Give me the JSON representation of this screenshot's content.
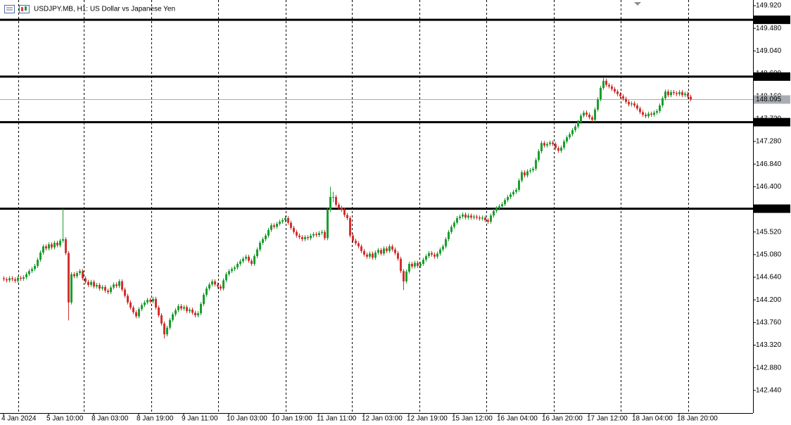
{
  "chart_data": {
    "type": "candlestick",
    "title": "USDJPY.MB, H1:  US Dollar vs Japanese Yen",
    "up_color": "#1a9e2e",
    "down_color": "#d32f2f",
    "level_color": "#000000",
    "current_color": "#a7adb2",
    "ylim": [
      142.0,
      150.03
    ],
    "yticks": [
      {
        "value": 149.92,
        "label": "149.920"
      },
      {
        "value": 149.48,
        "label": "149.480"
      },
      {
        "value": 149.04,
        "label": "149.040"
      },
      {
        "value": 148.6,
        "label": "148.600"
      },
      {
        "value": 148.16,
        "label": "148.160"
      },
      {
        "value": 147.72,
        "label": "147.720"
      },
      {
        "value": 147.28,
        "label": "147.280"
      },
      {
        "value": 146.84,
        "label": "146.840"
      },
      {
        "value": 146.4,
        "label": "146.400"
      },
      {
        "value": 145.96,
        "label": "145.960"
      },
      {
        "value": 145.52,
        "label": "145.520"
      },
      {
        "value": 145.08,
        "label": "145.080"
      },
      {
        "value": 144.64,
        "label": "144.640"
      },
      {
        "value": 144.2,
        "label": "144.200"
      },
      {
        "value": 143.76,
        "label": "143.760"
      },
      {
        "value": 143.32,
        "label": "143.320"
      },
      {
        "value": 142.88,
        "label": "142.880"
      },
      {
        "value": 142.44,
        "label": "142.440"
      }
    ],
    "levels": [
      149.645,
      148.541,
      147.655,
      145.973
    ],
    "current_price": 148.095,
    "categories": [
      "4 Jan 2024",
      null,
      null,
      null,
      null,
      null,
      null,
      null,
      null,
      null,
      null,
      null,
      null,
      null,
      null,
      null,
      "5 Jan 10:00",
      null,
      null,
      null,
      null,
      null,
      null,
      null,
      null,
      null,
      null,
      null,
      null,
      null,
      null,
      null,
      "8 Jan 03:00",
      null,
      null,
      null,
      null,
      null,
      null,
      null,
      null,
      null,
      null,
      null,
      null,
      null,
      null,
      null,
      "8 Jan 19:00",
      null,
      null,
      null,
      null,
      null,
      null,
      null,
      null,
      null,
      null,
      null,
      null,
      null,
      null,
      null,
      "9 Jan 11:00",
      null,
      null,
      null,
      null,
      null,
      null,
      null,
      null,
      null,
      null,
      null,
      null,
      null,
      null,
      null,
      "10 Jan 03:00",
      null,
      null,
      null,
      null,
      null,
      null,
      null,
      null,
      null,
      null,
      null,
      null,
      null,
      null,
      null,
      "10 Jan 19:00",
      null,
      null,
      null,
      null,
      null,
      null,
      null,
      null,
      null,
      null,
      null,
      null,
      null,
      null,
      null,
      "11 Jan 11:00",
      null,
      null,
      null,
      null,
      null,
      null,
      null,
      null,
      null,
      null,
      null,
      null,
      null,
      null,
      null,
      "12 Jan 03:00",
      null,
      null,
      null,
      null,
      null,
      null,
      null,
      null,
      null,
      null,
      null,
      null,
      null,
      null,
      null,
      "12 Jan 19:00",
      null,
      null,
      null,
      null,
      null,
      null,
      null,
      null,
      null,
      null,
      null,
      null,
      null,
      null,
      null,
      "15 Jan 12:00",
      null,
      null,
      null,
      null,
      null,
      null,
      null,
      null,
      null,
      null,
      null,
      null,
      null,
      null,
      null,
      "16 Jan 04:00",
      null,
      null,
      null,
      null,
      null,
      null,
      null,
      null,
      null,
      null,
      null,
      null,
      null,
      null,
      null,
      "16 Jan 20:00",
      null,
      null,
      null,
      null,
      null,
      null,
      null,
      null,
      null,
      null,
      null,
      null,
      null,
      null,
      null,
      "17 Jan 12:00",
      null,
      null,
      null,
      null,
      null,
      null,
      null,
      null,
      null,
      null,
      null,
      null,
      null,
      null,
      null,
      "18 Jan 04:00",
      null,
      null,
      null,
      null,
      null,
      null,
      null,
      null,
      null,
      null,
      null,
      null,
      null,
      null,
      null,
      "18 Jan 20:00",
      null,
      null,
      null,
      null
    ],
    "open": [
      144.62,
      144.6,
      144.58,
      144.62,
      144.6,
      144.57,
      144.63,
      144.61,
      144.64,
      144.7,
      144.76,
      144.8,
      144.86,
      144.98,
      145.12,
      145.24,
      145.2,
      145.28,
      145.22,
      145.31,
      145.26,
      145.35,
      145.38,
      145.11,
      144.15,
      144.7,
      144.66,
      144.72,
      144.76,
      144.62,
      144.55,
      144.49,
      144.55,
      144.46,
      144.49,
      144.42,
      144.45,
      144.38,
      144.35,
      144.44,
      144.5,
      144.47,
      144.56,
      144.4,
      144.28,
      144.15,
      144.05,
      143.96,
      143.88,
      144.02,
      144.1,
      144.15,
      144.2,
      144.17,
      144.22,
      144.05,
      143.9,
      143.74,
      143.53,
      143.66,
      143.81,
      143.92,
      144.0,
      144.08,
      144.03,
      144.06,
      143.98,
      144.01,
      143.95,
      143.9,
      143.94,
      144.12,
      144.3,
      144.42,
      144.5,
      144.56,
      144.5,
      144.46,
      144.42,
      144.58,
      144.7,
      144.76,
      144.8,
      144.83,
      144.9,
      144.95,
      145.0,
      145.04,
      144.96,
      144.9,
      145.05,
      145.18,
      145.31,
      145.38,
      145.45,
      145.56,
      145.65,
      145.62,
      145.68,
      145.72,
      145.75,
      145.79,
      145.7,
      145.6,
      145.52,
      145.45,
      145.42,
      145.38,
      145.42,
      145.4,
      145.45,
      145.48,
      145.46,
      145.5,
      145.52,
      145.4,
      145.95,
      146.2,
      146.2,
      146.05,
      145.99,
      145.95,
      145.85,
      145.79,
      145.45,
      145.35,
      145.3,
      145.24,
      145.15,
      145.08,
      145.04,
      145.1,
      145.02,
      145.12,
      145.17,
      145.1,
      145.2,
      145.15,
      145.24,
      145.18,
      145.11,
      145.0,
      144.76,
      144.56,
      144.75,
      144.9,
      144.85,
      144.92,
      144.86,
      144.9,
      144.98,
      145.05,
      145.11,
      145.08,
      145.04,
      145.1,
      145.18,
      145.24,
      145.38,
      145.52,
      145.62,
      145.7,
      145.79,
      145.82,
      145.86,
      145.8,
      145.84,
      145.8,
      145.82,
      145.8,
      145.78,
      145.8,
      145.75,
      145.72,
      145.84,
      145.93,
      145.98,
      146.02,
      146.06,
      146.14,
      146.2,
      146.25,
      146.3,
      146.34,
      146.52,
      146.68,
      146.62,
      146.7,
      146.72,
      146.75,
      146.92,
      147.09,
      147.25,
      147.2,
      147.23,
      147.26,
      147.23,
      147.15,
      147.1,
      147.16,
      147.28,
      147.36,
      147.42,
      147.5,
      147.57,
      147.66,
      147.78,
      147.84,
      147.8,
      147.75,
      147.7,
      147.9,
      148.1,
      148.32,
      148.46,
      148.38,
      148.35,
      148.3,
      148.25,
      148.2,
      148.16,
      148.11,
      148.05,
      148.0,
      148.02,
      147.98,
      147.92,
      147.85,
      147.8,
      147.77,
      147.82,
      147.8,
      147.84,
      147.87,
      147.98,
      148.12,
      148.25,
      148.18,
      148.24,
      148.22,
      148.2,
      148.24,
      148.18,
      148.21,
      148.15
    ],
    "high": [
      144.66,
      144.64,
      144.66,
      144.66,
      144.64,
      144.67,
      144.67,
      144.68,
      144.74,
      144.8,
      144.84,
      144.9,
      145.02,
      145.16,
      145.28,
      145.28,
      145.32,
      145.32,
      145.35,
      145.35,
      145.39,
      145.97,
      145.42,
      145.15,
      144.74,
      144.74,
      144.76,
      144.8,
      144.8,
      144.66,
      144.59,
      144.59,
      144.59,
      144.53,
      144.53,
      144.49,
      144.49,
      144.42,
      144.48,
      144.54,
      144.54,
      144.6,
      144.6,
      144.44,
      144.32,
      144.19,
      144.09,
      144.0,
      144.06,
      144.14,
      144.19,
      144.24,
      144.24,
      144.26,
      144.26,
      144.09,
      143.94,
      143.78,
      143.7,
      143.85,
      143.96,
      144.04,
      144.12,
      144.12,
      144.1,
      144.1,
      144.05,
      144.05,
      143.99,
      143.98,
      144.16,
      144.34,
      144.46,
      144.54,
      144.6,
      144.6,
      144.54,
      144.5,
      144.62,
      144.74,
      144.8,
      144.84,
      144.87,
      144.94,
      144.99,
      145.04,
      145.08,
      145.08,
      145.0,
      145.09,
      145.22,
      145.35,
      145.42,
      145.49,
      145.6,
      145.69,
      145.69,
      145.72,
      145.76,
      145.79,
      145.83,
      145.83,
      145.74,
      145.64,
      145.56,
      145.49,
      145.46,
      145.46,
      145.46,
      145.49,
      145.52,
      145.52,
      145.54,
      145.56,
      145.56,
      145.99,
      146.4,
      146.3,
      146.24,
      146.09,
      146.03,
      145.99,
      145.89,
      145.83,
      145.49,
      145.39,
      145.34,
      145.28,
      145.19,
      145.12,
      145.14,
      145.14,
      145.16,
      145.21,
      145.21,
      145.24,
      145.24,
      145.28,
      145.28,
      145.22,
      145.15,
      145.04,
      144.8,
      144.79,
      144.94,
      144.94,
      144.96,
      144.96,
      144.94,
      145.02,
      145.09,
      145.15,
      145.15,
      145.12,
      145.14,
      145.22,
      145.28,
      145.42,
      145.56,
      145.66,
      145.74,
      145.83,
      145.86,
      145.9,
      145.9,
      145.88,
      145.88,
      145.86,
      145.86,
      145.84,
      145.84,
      145.84,
      145.79,
      145.88,
      145.97,
      146.02,
      146.06,
      146.1,
      146.18,
      146.24,
      146.29,
      146.34,
      146.38,
      146.56,
      146.72,
      146.72,
      146.74,
      146.76,
      146.79,
      146.96,
      147.13,
      147.29,
      147.29,
      147.27,
      147.3,
      147.3,
      147.27,
      147.19,
      147.2,
      147.32,
      147.4,
      147.46,
      147.54,
      147.61,
      147.7,
      147.82,
      147.88,
      147.88,
      147.84,
      147.79,
      147.94,
      148.14,
      148.36,
      148.53,
      148.5,
      148.42,
      148.39,
      148.34,
      148.29,
      148.24,
      148.2,
      148.15,
      148.09,
      148.06,
      148.06,
      148.02,
      147.96,
      147.89,
      147.84,
      147.86,
      147.86,
      147.88,
      147.91,
      148.02,
      148.16,
      148.29,
      148.29,
      148.28,
      148.28,
      148.26,
      148.28,
      148.28,
      148.25,
      148.25,
      148.19
    ],
    "low": [
      144.56,
      144.54,
      144.54,
      144.56,
      144.53,
      144.53,
      144.57,
      144.57,
      144.6,
      144.66,
      144.72,
      144.76,
      144.82,
      144.94,
      145.08,
      145.16,
      145.16,
      145.18,
      145.18,
      145.22,
      145.22,
      145.31,
      145.07,
      143.8,
      144.11,
      144.62,
      144.62,
      144.68,
      144.58,
      144.51,
      144.45,
      144.45,
      144.42,
      144.42,
      144.38,
      144.38,
      144.34,
      144.31,
      144.31,
      144.4,
      144.43,
      144.43,
      144.36,
      144.24,
      144.11,
      144.01,
      143.92,
      143.84,
      143.84,
      143.98,
      144.06,
      144.11,
      144.13,
      144.13,
      144.01,
      143.86,
      143.7,
      143.45,
      143.49,
      143.62,
      143.77,
      143.88,
      143.96,
      143.99,
      143.99,
      143.94,
      143.94,
      143.91,
      143.86,
      143.86,
      143.9,
      144.08,
      144.26,
      144.38,
      144.46,
      144.46,
      144.42,
      144.38,
      144.38,
      144.54,
      144.66,
      144.72,
      144.76,
      144.79,
      144.86,
      144.91,
      144.96,
      144.92,
      144.86,
      144.86,
      145.01,
      145.14,
      145.27,
      145.34,
      145.41,
      145.52,
      145.58,
      145.58,
      145.64,
      145.68,
      145.71,
      145.66,
      145.56,
      145.48,
      145.41,
      145.38,
      145.34,
      145.34,
      145.36,
      145.36,
      145.41,
      145.42,
      145.42,
      145.46,
      145.36,
      145.36,
      145.91,
      146.1,
      146.01,
      145.95,
      145.91,
      145.81,
      145.75,
      145.41,
      145.31,
      145.26,
      145.2,
      145.11,
      145.04,
      145.0,
      145.0,
      144.98,
      144.98,
      145.08,
      145.06,
      145.06,
      145.11,
      145.11,
      145.14,
      145.07,
      144.96,
      144.72,
      144.39,
      144.52,
      144.71,
      144.81,
      144.81,
      144.82,
      144.82,
      144.86,
      144.94,
      145.01,
      145.04,
      145.0,
      145.0,
      145.06,
      145.14,
      145.2,
      145.34,
      145.48,
      145.58,
      145.66,
      145.75,
      145.78,
      145.76,
      145.76,
      145.76,
      145.76,
      145.76,
      145.74,
      145.74,
      145.71,
      145.68,
      145.68,
      145.8,
      145.89,
      145.94,
      145.98,
      146.02,
      146.1,
      146.16,
      146.21,
      146.26,
      146.3,
      146.48,
      146.58,
      146.58,
      146.66,
      146.68,
      146.71,
      146.88,
      147.05,
      147.16,
      147.16,
      147.19,
      147.19,
      147.11,
      147.06,
      147.06,
      147.12,
      147.24,
      147.32,
      147.38,
      147.46,
      147.53,
      147.62,
      147.74,
      147.76,
      147.71,
      147.66,
      147.66,
      147.86,
      148.06,
      148.28,
      148.34,
      148.31,
      148.26,
      148.21,
      148.16,
      148.12,
      148.07,
      148.01,
      147.96,
      147.96,
      147.94,
      147.88,
      147.81,
      147.76,
      147.73,
      147.73,
      147.76,
      147.76,
      147.8,
      147.83,
      147.94,
      148.08,
      148.14,
      148.14,
      148.18,
      148.16,
      148.16,
      148.14,
      148.14,
      148.11,
      148.06
    ],
    "close": [
      144.6,
      144.58,
      144.62,
      144.6,
      144.57,
      144.63,
      144.61,
      144.64,
      144.7,
      144.76,
      144.8,
      144.86,
      144.98,
      145.12,
      145.24,
      145.2,
      145.28,
      145.22,
      145.31,
      145.26,
      145.35,
      145.38,
      145.11,
      144.15,
      144.7,
      144.66,
      144.72,
      144.76,
      144.62,
      144.55,
      144.49,
      144.55,
      144.46,
      144.49,
      144.42,
      144.45,
      144.38,
      144.35,
      144.44,
      144.5,
      144.47,
      144.56,
      144.4,
      144.28,
      144.15,
      144.05,
      143.96,
      143.88,
      144.02,
      144.1,
      144.15,
      144.2,
      144.17,
      144.22,
      144.05,
      143.9,
      143.74,
      143.53,
      143.66,
      143.81,
      143.92,
      144.0,
      144.08,
      144.03,
      144.06,
      143.98,
      144.01,
      143.95,
      143.9,
      143.94,
      144.12,
      144.3,
      144.42,
      144.5,
      144.56,
      144.5,
      144.46,
      144.42,
      144.58,
      144.7,
      144.76,
      144.8,
      144.83,
      144.9,
      144.95,
      145.0,
      145.04,
      144.96,
      144.9,
      145.05,
      145.18,
      145.31,
      145.38,
      145.45,
      145.56,
      145.65,
      145.62,
      145.68,
      145.72,
      145.75,
      145.79,
      145.7,
      145.6,
      145.52,
      145.45,
      145.42,
      145.38,
      145.42,
      145.4,
      145.45,
      145.48,
      145.46,
      145.5,
      145.52,
      145.4,
      145.95,
      146.2,
      146.2,
      146.05,
      145.99,
      145.95,
      145.85,
      145.79,
      145.45,
      145.35,
      145.3,
      145.24,
      145.15,
      145.08,
      145.04,
      145.1,
      145.02,
      145.12,
      145.17,
      145.1,
      145.2,
      145.15,
      145.24,
      145.18,
      145.11,
      145.0,
      144.76,
      144.56,
      144.75,
      144.9,
      144.85,
      144.92,
      144.86,
      144.9,
      144.98,
      145.05,
      145.11,
      145.08,
      145.04,
      145.1,
      145.18,
      145.24,
      145.38,
      145.52,
      145.62,
      145.7,
      145.79,
      145.82,
      145.86,
      145.8,
      145.84,
      145.8,
      145.82,
      145.8,
      145.78,
      145.8,
      145.75,
      145.72,
      145.84,
      145.93,
      145.98,
      146.02,
      146.06,
      146.14,
      146.2,
      146.25,
      146.3,
      146.34,
      146.52,
      146.68,
      146.62,
      146.7,
      146.72,
      146.75,
      146.92,
      147.09,
      147.25,
      147.2,
      147.23,
      147.26,
      147.23,
      147.15,
      147.1,
      147.16,
      147.28,
      147.36,
      147.42,
      147.5,
      147.57,
      147.66,
      147.78,
      147.84,
      147.8,
      147.75,
      147.7,
      147.9,
      148.1,
      148.32,
      148.46,
      148.38,
      148.35,
      148.3,
      148.25,
      148.2,
      148.16,
      148.11,
      148.05,
      148.0,
      148.02,
      147.98,
      147.92,
      147.85,
      147.8,
      147.77,
      147.82,
      147.8,
      147.84,
      147.87,
      147.98,
      148.12,
      148.25,
      148.18,
      148.24,
      148.22,
      148.2,
      148.24,
      148.18,
      148.21,
      148.15,
      148.1
    ]
  }
}
